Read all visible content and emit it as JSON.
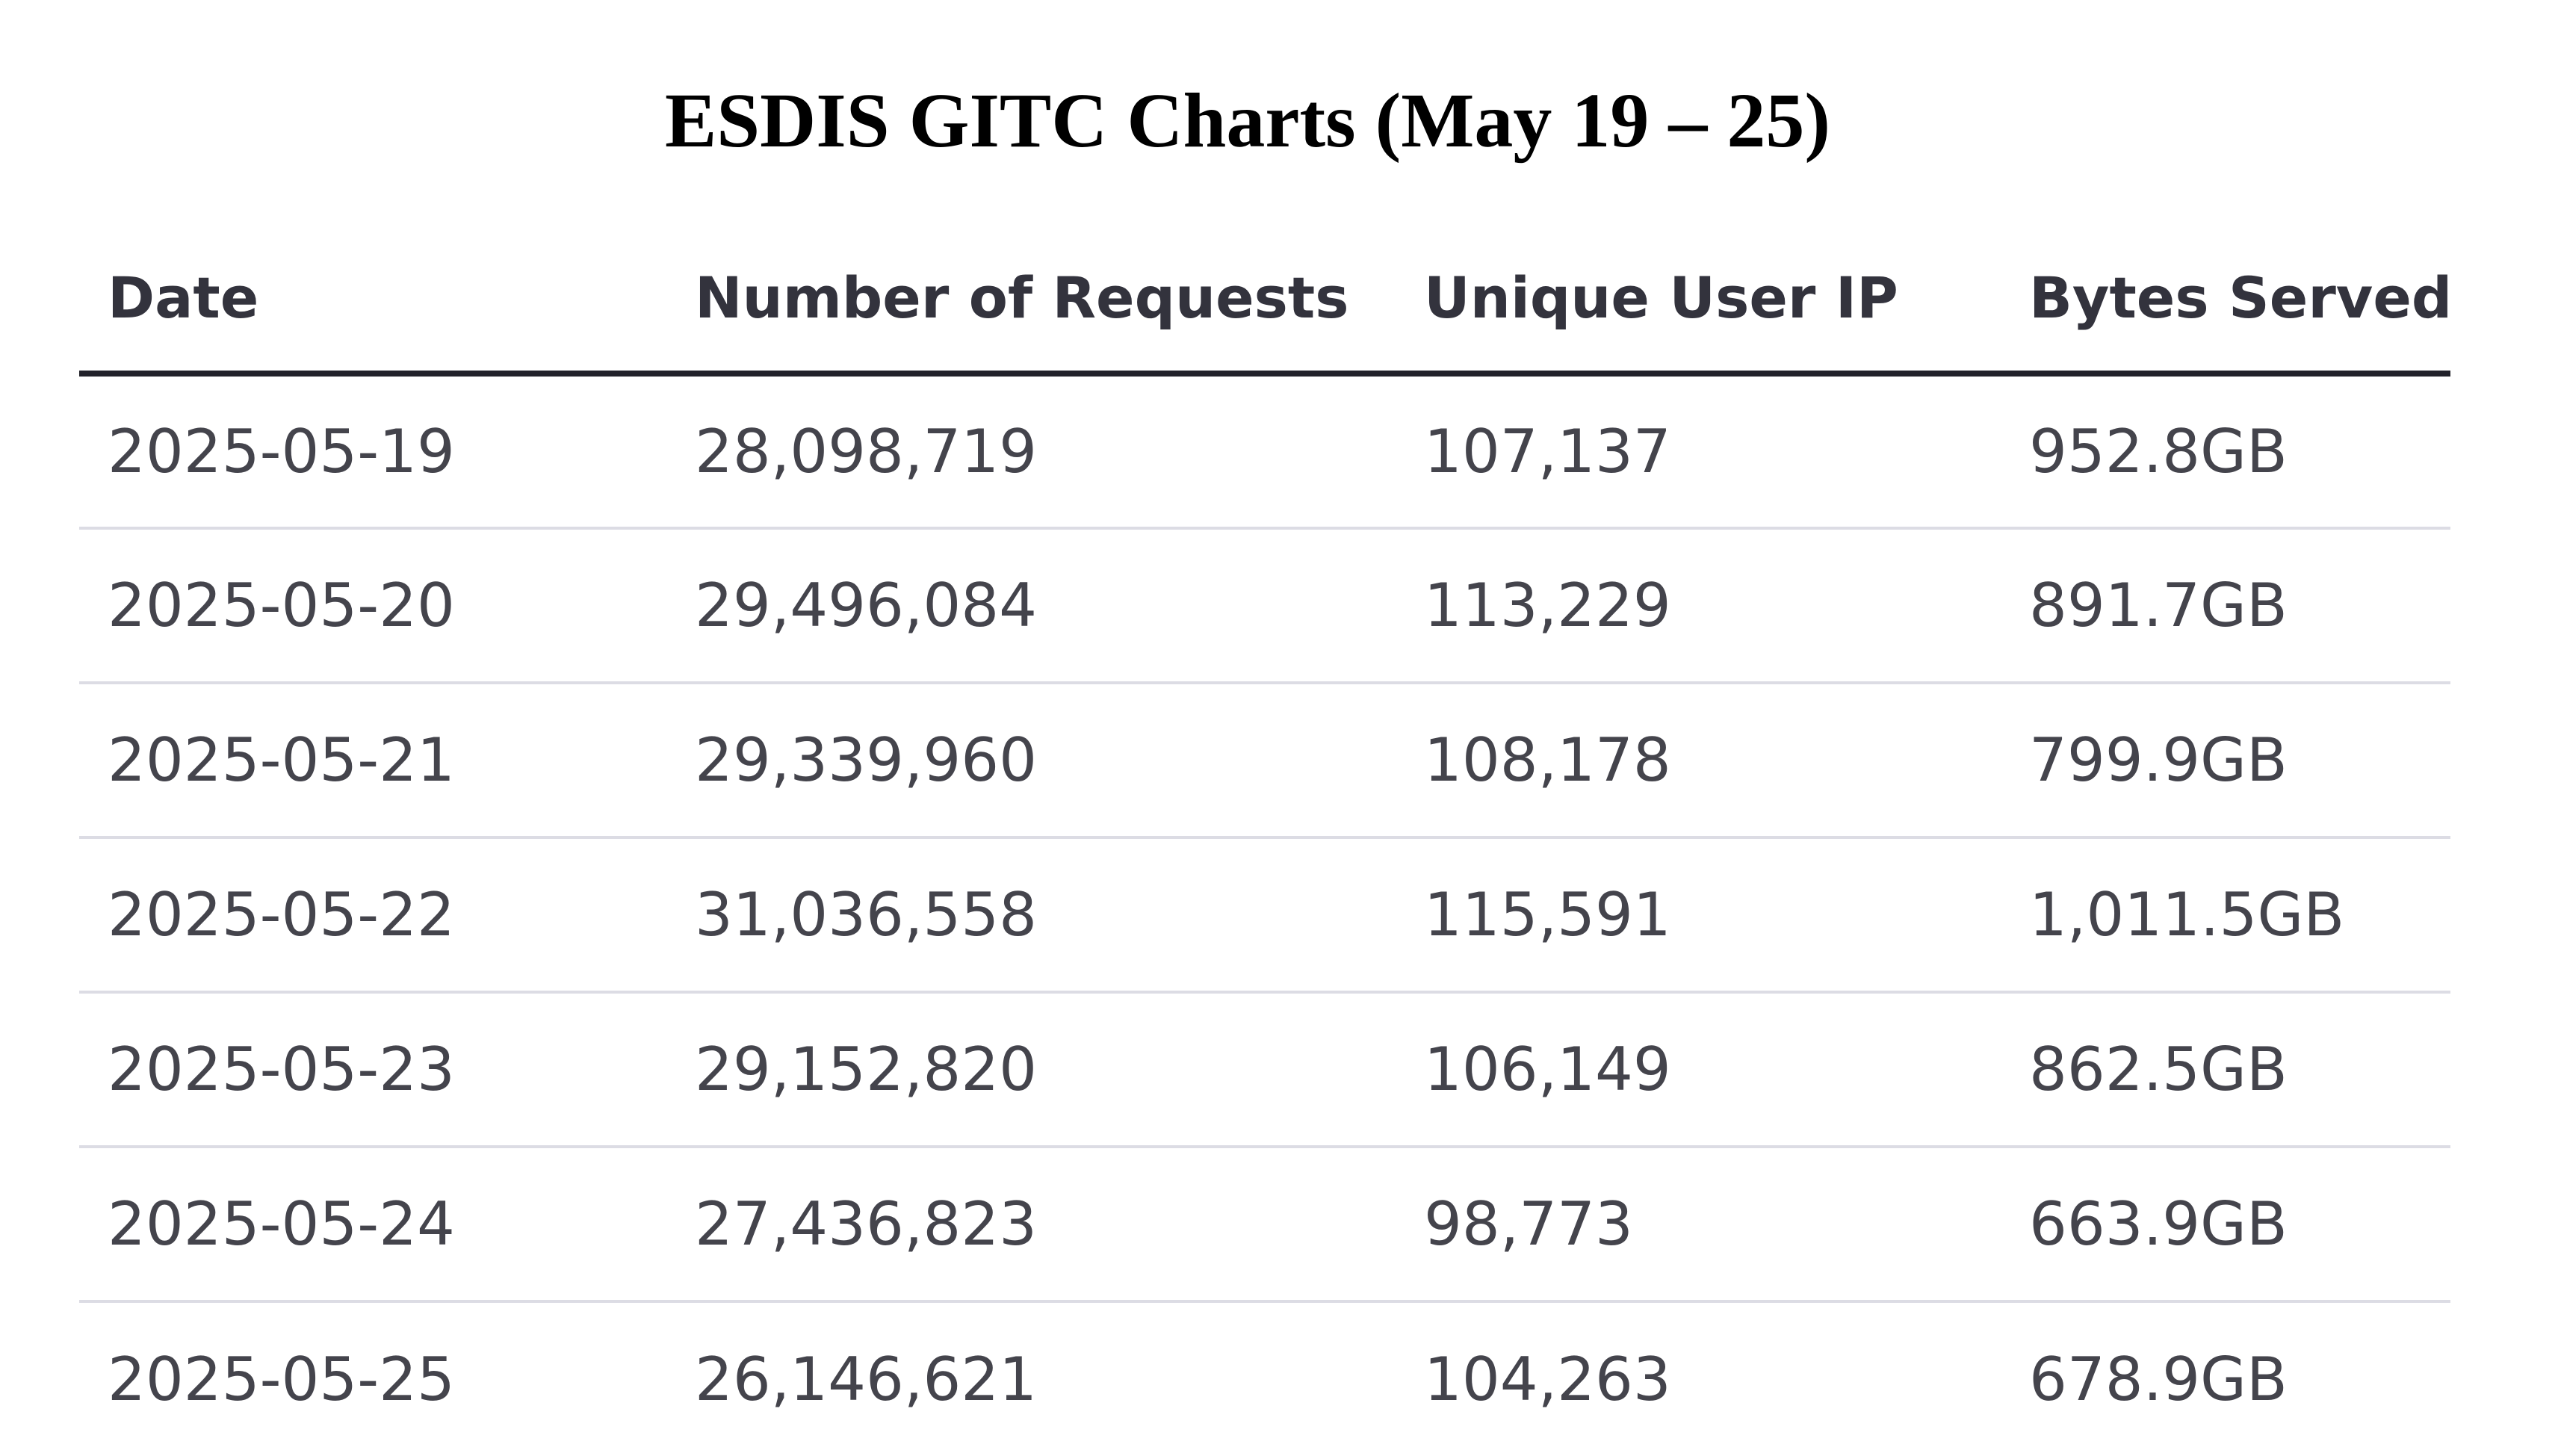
{
  "title": "ESDIS GITC Charts (May 19 – 25)",
  "table": {
    "columns": [
      "Date",
      "Number of Requests",
      "Unique User IP",
      "Bytes Served"
    ],
    "rows": [
      [
        "2025-05-19",
        "28,098,719",
        "107,137",
        "952.8GB"
      ],
      [
        "2025-05-20",
        "29,496,084",
        "113,229",
        "891.7GB"
      ],
      [
        "2025-05-21",
        "29,339,960",
        "108,178",
        "799.9GB"
      ],
      [
        "2025-05-22",
        "31,036,558",
        "115,591",
        "1,011.5GB"
      ],
      [
        "2025-05-23",
        "29,152,820",
        "106,149",
        "862.5GB"
      ],
      [
        "2025-05-24",
        "27,436,823",
        "98,773",
        "663.9GB"
      ],
      [
        "2025-05-25",
        "26,146,621",
        "104,263",
        "678.9GB"
      ]
    ]
  },
  "colors": {
    "header_text": "#33333d",
    "cell_text": "#44444c",
    "header_rule": "#22222a",
    "row_rule": "#dcdce4"
  }
}
